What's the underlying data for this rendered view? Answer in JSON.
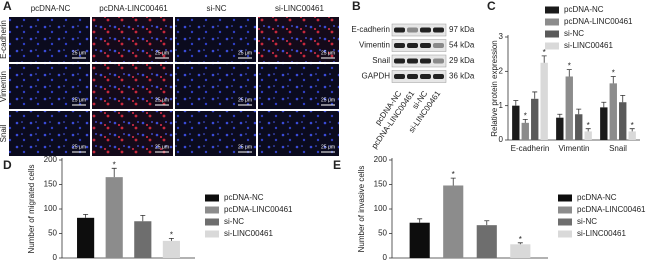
{
  "panel_labels": [
    "A",
    "B",
    "C",
    "D",
    "E"
  ],
  "panel_a": {
    "columns": [
      "pcDNA-NC",
      "pcDNA-LINC00461",
      "si-NC",
      "si-LINC00461"
    ],
    "rows": [
      "E-cadherin",
      "Vimentin",
      "Snail"
    ],
    "scale_bar": "25 μm"
  },
  "panel_b": {
    "proteins": [
      "E-cadherin",
      "Vimentin",
      "Snail",
      "GAPDH"
    ],
    "sizes": [
      "97 kDa",
      "54 kDa",
      "29 kDa",
      "36 kDa"
    ],
    "lanes": [
      "pcDNA-NC",
      "pcDNA-LINC00461",
      "si-NC",
      "si-LINC00461"
    ]
  },
  "chart_data": [
    {
      "type": "bar",
      "ylabel": "Relative protein expression",
      "categories": [
        "E-cadherin",
        "Vimentin",
        "Snail"
      ],
      "ylim": [
        0,
        3
      ],
      "yticks": [
        0,
        1,
        2,
        3
      ],
      "legend": "upper right",
      "series": [
        {
          "name": "pcDNA-NC",
          "color": "#1a1a1a",
          "values": [
            1.0,
            0.65,
            0.95
          ],
          "errors": [
            0.15,
            0.1,
            0.15
          ]
        },
        {
          "name": "pcDNA-LINC00461",
          "color": "#8c8c8c",
          "values": [
            0.5,
            1.85,
            1.65
          ],
          "errors": [
            0.1,
            0.2,
            0.2
          ]
        },
        {
          "name": "si-NC",
          "color": "#5a5a5a",
          "values": [
            1.2,
            0.75,
            1.1
          ],
          "errors": [
            0.2,
            0.15,
            0.2
          ]
        },
        {
          "name": "si-LINC00461",
          "color": "#d9d9d9",
          "values": [
            2.25,
            0.25,
            0.25
          ],
          "errors": [
            0.2,
            0.08,
            0.08
          ]
        }
      ],
      "annotations": [
        {
          "text": "*",
          "series": "pcDNA-LINC00461",
          "category": "E-cadherin"
        },
        {
          "text": "*",
          "series": "si-LINC00461",
          "category": "E-cadherin"
        },
        {
          "text": "*",
          "series": "pcDNA-LINC00461",
          "category": "Vimentin"
        },
        {
          "text": "*",
          "series": "si-LINC00461",
          "category": "Vimentin"
        },
        {
          "text": "*",
          "series": "pcDNA-LINC00461",
          "category": "Snail"
        },
        {
          "text": "*",
          "series": "si-LINC00461",
          "category": "Snail"
        }
      ]
    },
    {
      "type": "bar",
      "ylabel": "Number of migrated cells",
      "ylim": [
        0,
        200
      ],
      "yticks": [
        0,
        50,
        100,
        150,
        200
      ],
      "legend": "right",
      "series": [
        {
          "name": "pcDNA-NC",
          "color": "#0d0d0d",
          "values": [
            82
          ],
          "errors": [
            7
          ]
        },
        {
          "name": "pcDNA-LINC00461",
          "color": "#8c8c8c",
          "values": [
            165
          ],
          "errors": [
            18
          ]
        },
        {
          "name": "si-NC",
          "color": "#6e6e6e",
          "values": [
            75
          ],
          "errors": [
            12
          ]
        },
        {
          "name": "si-LINC00461",
          "color": "#d9d9d9",
          "values": [
            35
          ],
          "errors": [
            5
          ]
        }
      ],
      "annotations": [
        {
          "text": "*",
          "series": "pcDNA-LINC00461"
        },
        {
          "text": "*",
          "series": "si-LINC00461"
        }
      ]
    },
    {
      "type": "bar",
      "ylabel": "Number of invasive cells",
      "ylim": [
        0,
        200
      ],
      "yticks": [
        0,
        50,
        100,
        150,
        200
      ],
      "legend": "right",
      "series": [
        {
          "name": "pcDNA-NC",
          "color": "#0d0d0d",
          "values": [
            72
          ],
          "errors": [
            8
          ]
        },
        {
          "name": "pcDNA-LINC00461",
          "color": "#8c8c8c",
          "values": [
            148
          ],
          "errors": [
            15
          ]
        },
        {
          "name": "si-NC",
          "color": "#6e6e6e",
          "values": [
            67
          ],
          "errors": [
            9
          ]
        },
        {
          "name": "si-LINC00461",
          "color": "#d9d9d9",
          "values": [
            28
          ],
          "errors": [
            3
          ]
        }
      ],
      "annotations": [
        {
          "text": "*",
          "series": "pcDNA-LINC00461"
        },
        {
          "text": "*",
          "series": "si-LINC00461"
        }
      ]
    }
  ]
}
